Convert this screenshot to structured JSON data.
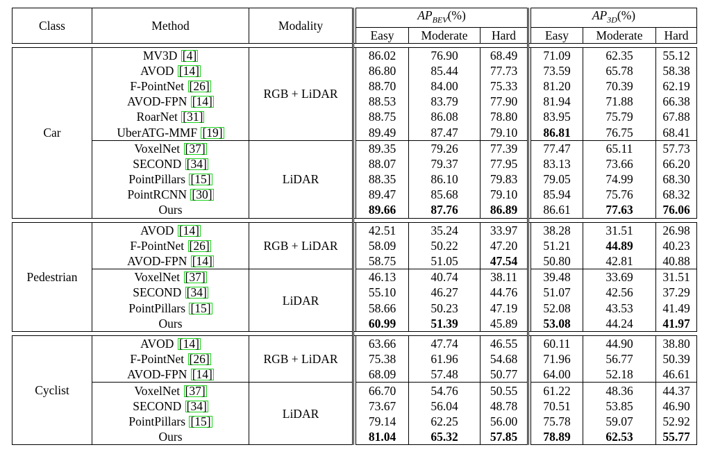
{
  "header": {
    "class": "Class",
    "method": "Method",
    "modality": "Modality",
    "ap_bev": "AP",
    "ap_bev_sub": "BEV",
    "ap_3d": "AP",
    "ap_3d_sub": "3D",
    "pct": "(%)",
    "easy": "Easy",
    "moderate": "Moderate",
    "hard": "Hard"
  },
  "groups": [
    {
      "class": "Car",
      "subgroups": [
        {
          "modality": "RGB + LiDAR",
          "rows": [
            {
              "method": "MV3D",
              "cite": "4",
              "vals": [
                "86.02",
                "76.90",
                "68.49",
                "71.09",
                "62.35",
                "55.12"
              ],
              "bold": []
            },
            {
              "method": "AVOD",
              "cite": "14",
              "vals": [
                "86.80",
                "85.44",
                "77.73",
                "73.59",
                "65.78",
                "58.38"
              ],
              "bold": []
            },
            {
              "method": "F-PointNet",
              "cite": "26",
              "vals": [
                "88.70",
                "84.00",
                "75.33",
                "81.20",
                "70.39",
                "62.19"
              ],
              "bold": []
            },
            {
              "method": "AVOD-FPN",
              "cite": "14",
              "vals": [
                "88.53",
                "83.79",
                "77.90",
                "81.94",
                "71.88",
                "66.38"
              ],
              "bold": []
            },
            {
              "method": "RoarNet",
              "cite": "31",
              "vals": [
                "88.75",
                "86.08",
                "78.80",
                "83.95",
                "75.79",
                "67.88"
              ],
              "bold": []
            },
            {
              "method": "UberATG-MMF",
              "cite": "19",
              "vals": [
                "89.49",
                "87.47",
                "79.10",
                "86.81",
                "76.75",
                "68.41"
              ],
              "bold": [
                3
              ]
            }
          ]
        },
        {
          "modality": "LiDAR",
          "rows": [
            {
              "method": "VoxelNet",
              "cite": "37",
              "vals": [
                "89.35",
                "79.26",
                "77.39",
                "77.47",
                "65.11",
                "57.73"
              ],
              "bold": []
            },
            {
              "method": "SECOND",
              "cite": "34",
              "vals": [
                "88.07",
                "79.37",
                "77.95",
                "83.13",
                "73.66",
                "66.20"
              ],
              "bold": []
            },
            {
              "method": "PointPillars",
              "cite": "15",
              "vals": [
                "88.35",
                "86.10",
                "79.83",
                "79.05",
                "74.99",
                "68.30"
              ],
              "bold": []
            },
            {
              "method": "PointRCNN",
              "cite": "30",
              "vals": [
                "89.47",
                "85.68",
                "79.10",
                "85.94",
                "75.76",
                "68.32"
              ],
              "bold": []
            },
            {
              "method": "Ours",
              "cite": "",
              "vals": [
                "89.66",
                "87.76",
                "86.89",
                "86.61",
                "77.63",
                "76.06"
              ],
              "bold": [
                0,
                1,
                2,
                4,
                5
              ]
            }
          ]
        }
      ]
    },
    {
      "class": "Pedestrian",
      "subgroups": [
        {
          "modality": "RGB + LiDAR",
          "rows": [
            {
              "method": "AVOD",
              "cite": "14",
              "vals": [
                "42.51",
                "35.24",
                "33.97",
                "38.28",
                "31.51",
                "26.98"
              ],
              "bold": []
            },
            {
              "method": "F-PointNet",
              "cite": "26",
              "vals": [
                "58.09",
                "50.22",
                "47.20",
                "51.21",
                "44.89",
                "40.23"
              ],
              "bold": [
                4
              ]
            },
            {
              "method": "AVOD-FPN",
              "cite": "14",
              "vals": [
                "58.75",
                "51.05",
                "47.54",
                "50.80",
                "42.81",
                "40.88"
              ],
              "bold": [
                2
              ]
            }
          ]
        },
        {
          "modality": "LiDAR",
          "rows": [
            {
              "method": "VoxelNet",
              "cite": "37",
              "vals": [
                "46.13",
                "40.74",
                "38.11",
                "39.48",
                "33.69",
                "31.51"
              ],
              "bold": []
            },
            {
              "method": "SECOND",
              "cite": "34",
              "vals": [
                "55.10",
                "46.27",
                "44.76",
                "51.07",
                "42.56",
                "37.29"
              ],
              "bold": []
            },
            {
              "method": "PointPillars",
              "cite": "15",
              "vals": [
                "58.66",
                "50.23",
                "47.19",
                "52.08",
                "43.53",
                "41.49"
              ],
              "bold": []
            },
            {
              "method": "Ours",
              "cite": "",
              "vals": [
                "60.99",
                "51.39",
                "45.89",
                "53.08",
                "44.24",
                "41.97"
              ],
              "bold": [
                0,
                1,
                3,
                5
              ]
            }
          ]
        }
      ]
    },
    {
      "class": "Cyclist",
      "subgroups": [
        {
          "modality": "RGB + LiDAR",
          "rows": [
            {
              "method": "AVOD",
              "cite": "14",
              "vals": [
                "63.66",
                "47.74",
                "46.55",
                "60.11",
                "44.90",
                "38.80"
              ],
              "bold": []
            },
            {
              "method": "F-PointNet",
              "cite": "26",
              "vals": [
                "75.38",
                "61.96",
                "54.68",
                "71.96",
                "56.77",
                "50.39"
              ],
              "bold": []
            },
            {
              "method": "AVOD-FPN",
              "cite": "14",
              "vals": [
                "68.09",
                "57.48",
                "50.77",
                "64.00",
                "52.18",
                "46.61"
              ],
              "bold": []
            }
          ]
        },
        {
          "modality": "LiDAR",
          "rows": [
            {
              "method": "VoxelNet",
              "cite": "37",
              "vals": [
                "66.70",
                "54.76",
                "50.55",
                "61.22",
                "48.36",
                "44.37"
              ],
              "bold": []
            },
            {
              "method": "SECOND",
              "cite": "34",
              "vals": [
                "73.67",
                "56.04",
                "48.78",
                "70.51",
                "53.85",
                "46.90"
              ],
              "bold": []
            },
            {
              "method": "PointPillars",
              "cite": "15",
              "vals": [
                "79.14",
                "62.25",
                "56.00",
                "75.78",
                "59.07",
                "52.92"
              ],
              "bold": []
            },
            {
              "method": "Ours",
              "cite": "",
              "vals": [
                "81.04",
                "65.32",
                "57.85",
                "78.89",
                "62.53",
                "55.77"
              ],
              "bold": [
                0,
                1,
                2,
                3,
                4,
                5
              ]
            }
          ]
        }
      ]
    }
  ]
}
